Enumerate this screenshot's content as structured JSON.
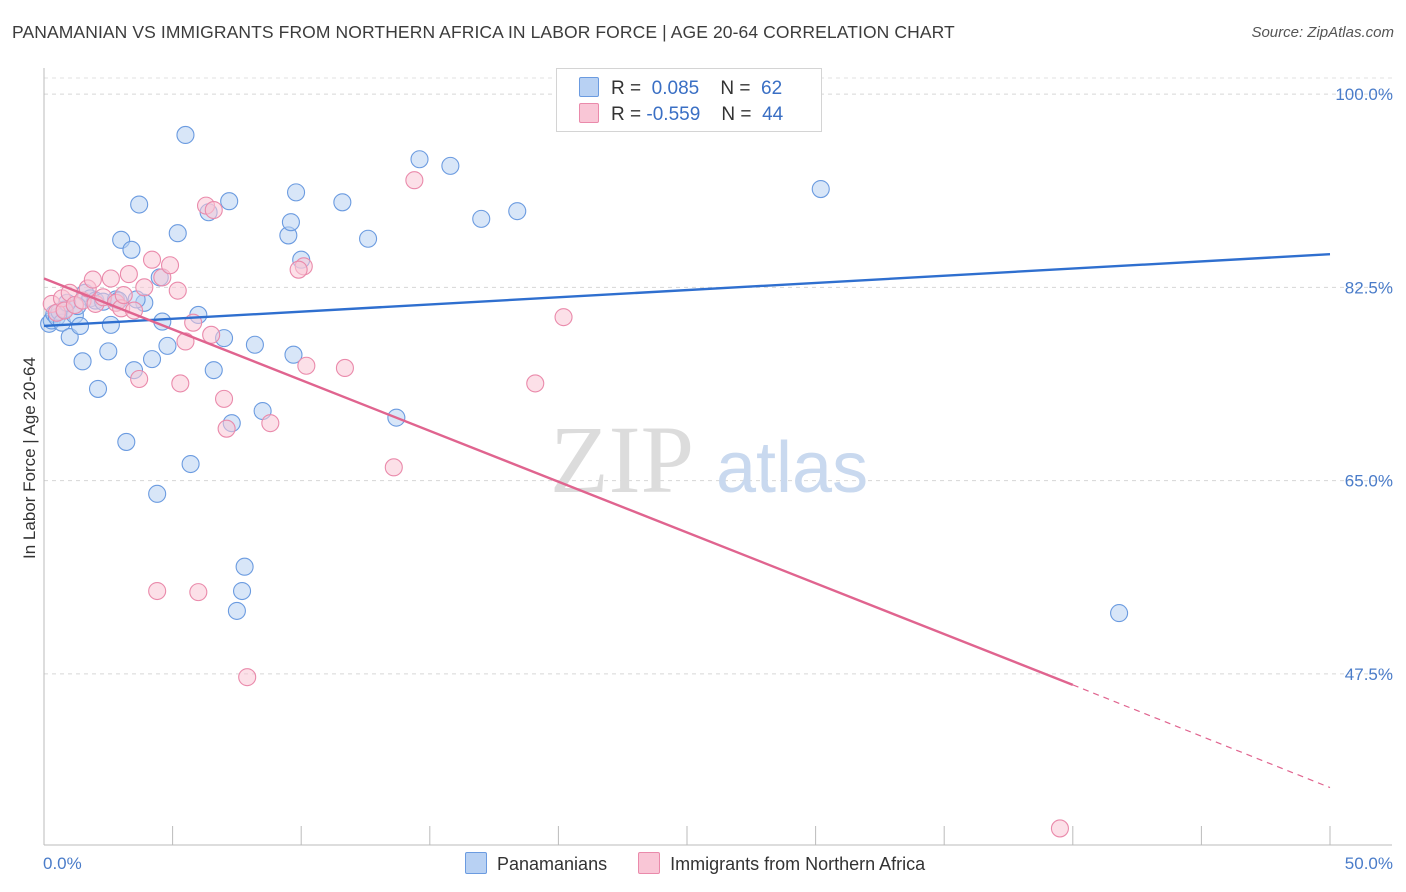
{
  "title": "PANAMANIAN VS IMMIGRANTS FROM NORTHERN AFRICA IN LABOR FORCE | AGE 20-64 CORRELATION CHART",
  "source": "Source: ZipAtlas.com",
  "watermark": {
    "zip": "ZIP",
    "atlas": "atlas"
  },
  "legend_stats": [
    {
      "r_label": "R =",
      "r_value": "0.085",
      "n_label": "N =",
      "n_value": "62",
      "fill": "#b8d1f3",
      "stroke": "#6b9be0"
    },
    {
      "r_label": "R =",
      "r_value": "-0.559",
      "n_label": "N =",
      "n_value": "44",
      "fill": "#f9c6d6",
      "stroke": "#ea8aab"
    }
  ],
  "chart_data": {
    "type": "scatter",
    "ylabel": "In Labor Force | Age 20-64",
    "xlim": [
      0,
      50
    ],
    "ylim": [
      32,
      102
    ],
    "y_ticks": [
      100,
      82.5,
      65,
      47.5
    ],
    "y_tick_labels": [
      "100.0%",
      "82.5%",
      "65.0%",
      "47.5%"
    ],
    "x_tick_labels": [
      "0.0%",
      "50.0%"
    ],
    "grid": true,
    "series": [
      {
        "name": "Panamanians",
        "color": "#6b9be0",
        "fill": "#b8d1f3",
        "line_color": "#2f6fcf",
        "trend": {
          "x0": 0,
          "y0": 79.0,
          "x1": 50,
          "y1": 85.5
        },
        "points": [
          [
            0.2,
            79.2
          ],
          [
            0.3,
            79.5
          ],
          [
            0.4,
            80.1
          ],
          [
            0.5,
            79.8
          ],
          [
            0.6,
            80.3
          ],
          [
            0.7,
            79.3
          ],
          [
            0.8,
            80.5
          ],
          [
            1.0,
            78.0
          ],
          [
            1.2,
            80.0
          ],
          [
            1.4,
            79.0
          ],
          [
            1.5,
            75.8
          ],
          [
            1.6,
            82.0
          ],
          [
            1.8,
            81.5
          ],
          [
            2.0,
            81.3
          ],
          [
            2.1,
            73.3
          ],
          [
            2.3,
            81.2
          ],
          [
            2.5,
            76.7
          ],
          [
            2.6,
            79.1
          ],
          [
            2.8,
            81.4
          ],
          [
            3.0,
            86.8
          ],
          [
            3.2,
            68.5
          ],
          [
            3.4,
            85.9
          ],
          [
            3.5,
            75.0
          ],
          [
            3.7,
            90.0
          ],
          [
            3.9,
            81.1
          ],
          [
            4.2,
            76.0
          ],
          [
            4.4,
            63.8
          ],
          [
            4.5,
            83.4
          ],
          [
            4.6,
            79.4
          ],
          [
            4.8,
            77.2
          ],
          [
            5.2,
            87.4
          ],
          [
            5.5,
            96.3
          ],
          [
            5.7,
            66.5
          ],
          [
            6.0,
            80.0
          ],
          [
            6.4,
            89.3
          ],
          [
            6.6,
            75.0
          ],
          [
            7.0,
            77.9
          ],
          [
            7.2,
            90.3
          ],
          [
            7.3,
            70.2
          ],
          [
            7.7,
            55.0
          ],
          [
            7.8,
            57.2
          ],
          [
            8.2,
            77.3
          ],
          [
            8.5,
            71.3
          ],
          [
            9.5,
            87.2
          ],
          [
            9.6,
            88.4
          ],
          [
            9.8,
            91.1
          ],
          [
            9.7,
            76.4
          ],
          [
            10.0,
            85.0
          ],
          [
            11.6,
            90.2
          ],
          [
            12.6,
            86.9
          ],
          [
            13.7,
            70.7
          ],
          [
            14.6,
            94.1
          ],
          [
            15.8,
            93.5
          ],
          [
            17.0,
            88.7
          ],
          [
            18.4,
            89.4
          ],
          [
            30.2,
            91.4
          ],
          [
            41.8,
            53.0
          ],
          [
            7.5,
            53.2
          ],
          [
            3.6,
            81.4
          ],
          [
            2.9,
            81.3
          ],
          [
            1.3,
            80.8
          ],
          [
            0.9,
            81.1
          ]
        ]
      },
      {
        "name": "Immigrants from Northern Africa",
        "color": "#ea8aab",
        "fill": "#f9c6d6",
        "line_color": "#e0648f",
        "trend": {
          "x0": 0,
          "y0": 83.3,
          "x1": 40,
          "y1": 46.5
        },
        "trend_ext": {
          "x0": 40,
          "y0": 46.5,
          "x1": 50,
          "y1": 37.2
        },
        "points": [
          [
            0.3,
            81.0
          ],
          [
            0.5,
            80.2
          ],
          [
            0.7,
            81.5
          ],
          [
            0.8,
            80.4
          ],
          [
            1.0,
            82.0
          ],
          [
            1.2,
            80.9
          ],
          [
            1.5,
            81.3
          ],
          [
            1.7,
            82.4
          ],
          [
            1.9,
            83.2
          ],
          [
            2.0,
            81.0
          ],
          [
            2.3,
            81.6
          ],
          [
            2.6,
            83.3
          ],
          [
            2.8,
            81.1
          ],
          [
            3.0,
            80.6
          ],
          [
            3.1,
            81.8
          ],
          [
            3.3,
            83.7
          ],
          [
            3.5,
            80.4
          ],
          [
            3.7,
            74.2
          ],
          [
            3.9,
            82.5
          ],
          [
            4.2,
            85.0
          ],
          [
            4.4,
            55.0
          ],
          [
            4.6,
            83.4
          ],
          [
            4.9,
            84.5
          ],
          [
            5.2,
            82.2
          ],
          [
            5.3,
            73.8
          ],
          [
            5.5,
            77.6
          ],
          [
            5.8,
            79.3
          ],
          [
            6.0,
            54.9
          ],
          [
            6.3,
            89.9
          ],
          [
            6.5,
            78.2
          ],
          [
            6.6,
            89.5
          ],
          [
            7.0,
            72.4
          ],
          [
            7.1,
            69.7
          ],
          [
            7.9,
            47.2
          ],
          [
            8.8,
            70.2
          ],
          [
            10.1,
            84.4
          ],
          [
            10.2,
            75.4
          ],
          [
            11.7,
            75.2
          ],
          [
            13.6,
            66.2
          ],
          [
            14.4,
            92.2
          ],
          [
            19.1,
            73.8
          ],
          [
            20.2,
            79.8
          ],
          [
            39.5,
            33.5
          ],
          [
            9.9,
            84.1
          ]
        ]
      }
    ]
  }
}
